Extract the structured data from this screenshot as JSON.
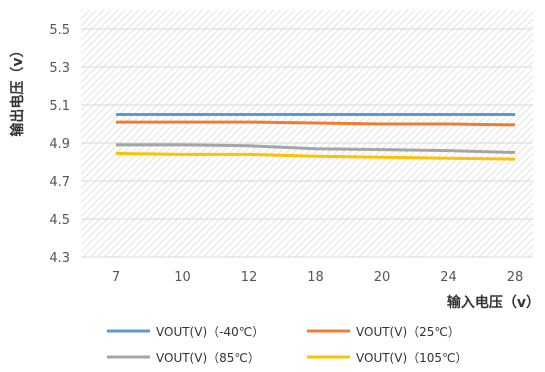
{
  "chart_data": {
    "type": "line",
    "title": "",
    "xlabel": "输入电压（v）",
    "ylabel": "输出电压（v）",
    "categories": [
      "7",
      "10",
      "12",
      "18",
      "20",
      "24",
      "28"
    ],
    "ylim": [
      4.3,
      5.6
    ],
    "yticks": [
      "4.3",
      "4.5",
      "4.7",
      "4.9",
      "5.1",
      "5.3",
      "5.5"
    ],
    "grid": true,
    "legend_position": "bottom",
    "series": [
      {
        "name": "VOUT(V)（-40℃）",
        "color": "#5b9bd5",
        "values": [
          5.05,
          5.05,
          5.05,
          5.05,
          5.05,
          5.05,
          5.05
        ]
      },
      {
        "name": "VOUT(V)（25℃）",
        "color": "#ed7d31",
        "values": [
          5.01,
          5.01,
          5.01,
          5.005,
          5.0,
          5.0,
          4.995
        ]
      },
      {
        "name": "VOUT(V)（85℃）",
        "color": "#a5a5a5",
        "values": [
          4.89,
          4.89,
          4.885,
          4.87,
          4.865,
          4.86,
          4.85
        ]
      },
      {
        "name": "VOUT(V)（105℃）",
        "color": "#ffc000",
        "values": [
          4.845,
          4.84,
          4.84,
          4.83,
          4.825,
          4.82,
          4.815
        ]
      }
    ]
  }
}
